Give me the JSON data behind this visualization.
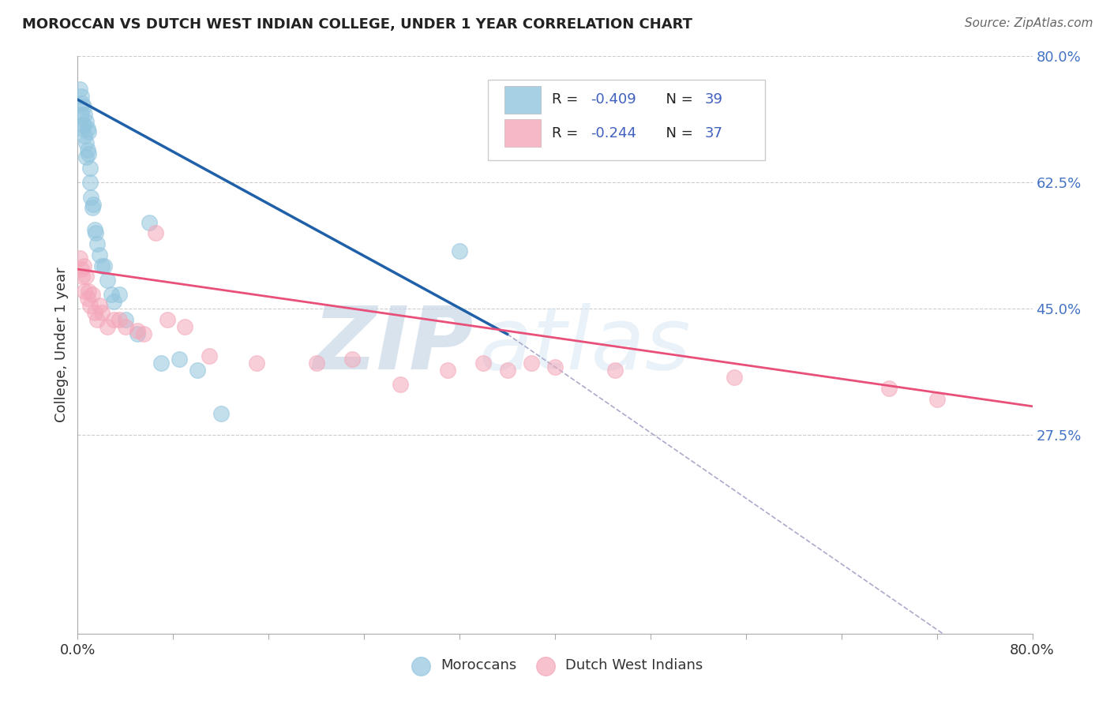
{
  "title": "MOROCCAN VS DUTCH WEST INDIAN COLLEGE, UNDER 1 YEAR CORRELATION CHART",
  "source": "Source: ZipAtlas.com",
  "ylabel": "College, Under 1 year",
  "xmin": 0.0,
  "xmax": 0.8,
  "ymin": 0.0,
  "ymax": 0.8,
  "yticks": [
    0.275,
    0.45,
    0.625,
    0.8
  ],
  "ytick_labels": [
    "27.5%",
    "45.0%",
    "62.5%",
    "80.0%"
  ],
  "blue_color": "#92c5de",
  "pink_color": "#f4a7b9",
  "blue_line_color": "#2060a8",
  "pink_line_color": "#e8507a",
  "blue_x": [
    0.002,
    0.003,
    0.003,
    0.004,
    0.004,
    0.005,
    0.005,
    0.006,
    0.006,
    0.007,
    0.007,
    0.007,
    0.008,
    0.008,
    0.009,
    0.009,
    0.01,
    0.01,
    0.011,
    0.012,
    0.013,
    0.014,
    0.015,
    0.016,
    0.018,
    0.02,
    0.022,
    0.025,
    0.028,
    0.03,
    0.035,
    0.04,
    0.05,
    0.06,
    0.07,
    0.085,
    0.1,
    0.12,
    0.32
  ],
  "blue_y": [
    0.755,
    0.745,
    0.72,
    0.735,
    0.7,
    0.73,
    0.705,
    0.72,
    0.69,
    0.71,
    0.68,
    0.66,
    0.7,
    0.67,
    0.695,
    0.665,
    0.645,
    0.625,
    0.605,
    0.59,
    0.595,
    0.56,
    0.555,
    0.54,
    0.525,
    0.51,
    0.51,
    0.49,
    0.47,
    0.46,
    0.47,
    0.435,
    0.415,
    0.57,
    0.375,
    0.38,
    0.365,
    0.305,
    0.53
  ],
  "pink_x": [
    0.002,
    0.003,
    0.004,
    0.005,
    0.006,
    0.007,
    0.008,
    0.009,
    0.01,
    0.012,
    0.014,
    0.016,
    0.018,
    0.02,
    0.025,
    0.03,
    0.035,
    0.04,
    0.05,
    0.055,
    0.065,
    0.075,
    0.09,
    0.11,
    0.15,
    0.2,
    0.23,
    0.27,
    0.31,
    0.34,
    0.36,
    0.38,
    0.4,
    0.45,
    0.55,
    0.68,
    0.72
  ],
  "pink_y": [
    0.52,
    0.505,
    0.495,
    0.51,
    0.475,
    0.495,
    0.465,
    0.475,
    0.455,
    0.47,
    0.445,
    0.435,
    0.455,
    0.445,
    0.425,
    0.435,
    0.435,
    0.425,
    0.42,
    0.415,
    0.555,
    0.435,
    0.425,
    0.385,
    0.375,
    0.375,
    0.38,
    0.345,
    0.365,
    0.375,
    0.365,
    0.375,
    0.37,
    0.365,
    0.355,
    0.34,
    0.325
  ],
  "blue_line_x": [
    0.0,
    0.36
  ],
  "blue_line_y": [
    0.74,
    0.415
  ],
  "pink_line_x": [
    0.0,
    0.8
  ],
  "pink_line_y": [
    0.505,
    0.315
  ],
  "diag_line_x": [
    0.36,
    0.725
  ],
  "diag_line_y": [
    0.415,
    0.0
  ],
  "watermark_zip": "ZIP",
  "watermark_atlas": "atlas",
  "background_color": "#ffffff",
  "grid_color": "#cccccc"
}
